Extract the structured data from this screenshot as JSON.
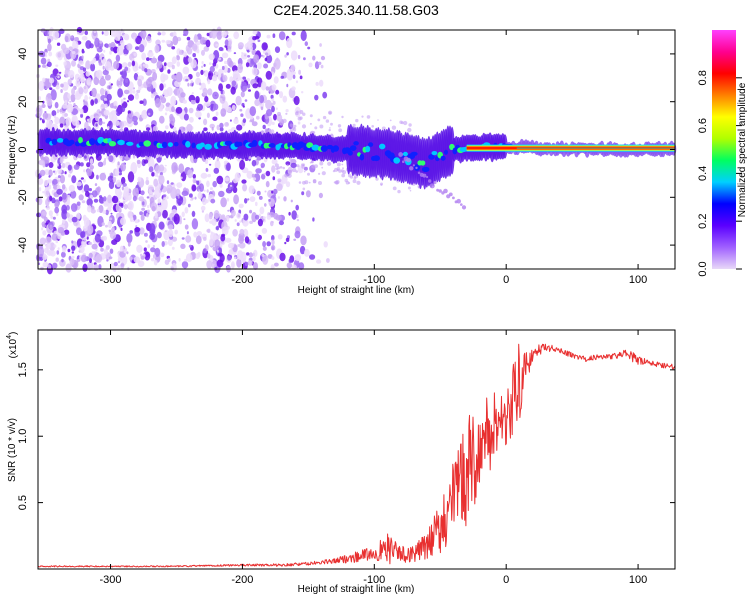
{
  "title": "C2E4.2025.340.11.58.G03",
  "chart_data": [
    {
      "type": "heatmap",
      "name": "spectrogram",
      "xlabel": "Height of straight line (km)",
      "ylabel": "Frequency (Hz)",
      "xlim": [
        -355,
        128
      ],
      "ylim": [
        -50,
        50
      ],
      "xticks": [
        "-300",
        "-200",
        "-100",
        "0",
        "100"
      ],
      "xtick_values": [
        -300,
        -200,
        -100,
        0,
        100
      ],
      "yticks": [
        "40",
        "20",
        "0",
        "-20",
        "-40"
      ],
      "ytick_values": [
        40,
        20,
        0,
        -20,
        -40
      ],
      "colorbar": {
        "label": "Normalized spectral amplitude",
        "range": [
          0,
          1
        ],
        "ticks": [
          "0.0",
          "0.2",
          "0.4",
          "0.6",
          "0.8"
        ],
        "tick_values": [
          0.0,
          0.2,
          0.4,
          0.6,
          0.8
        ],
        "colors": [
          "#e8d8f8",
          "#a060ff",
          "#5a00ff",
          "#0000ff",
          "#00d0ff",
          "#00ff60",
          "#b0ff00",
          "#ffff00",
          "#ff8000",
          "#ff0000",
          "#ff0090",
          "#ff40ff"
        ]
      },
      "ridge": [
        {
          "x": -350,
          "freq": 3
        },
        {
          "x": -300,
          "freq": 3
        },
        {
          "x": -250,
          "freq": 2
        },
        {
          "x": -200,
          "freq": 2
        },
        {
          "x": -150,
          "freq": 1
        },
        {
          "x": -120,
          "freq": 0
        },
        {
          "x": -100,
          "freq": -1
        },
        {
          "x": -80,
          "freq": -3
        },
        {
          "x": -60,
          "freq": -6
        },
        {
          "x": -50,
          "freq": -3
        },
        {
          "x": -40,
          "freq": 0
        },
        {
          "x": -20,
          "freq": 1
        },
        {
          "x": 0,
          "freq": 1
        },
        {
          "x": 50,
          "freq": 0
        },
        {
          "x": 128,
          "freq": 0
        }
      ]
    },
    {
      "type": "line",
      "name": "snr",
      "xlabel": "Height of straight line (km)",
      "ylabel": "SNR (10 * v/v)",
      "yscale_label": "(x10",
      "yscale_exp": "4",
      "xlim": [
        -355,
        128
      ],
      "ylim": [
        0,
        1.8
      ],
      "xticks": [
        "-300",
        "-200",
        "-100",
        "0",
        "100"
      ],
      "xtick_values": [
        -300,
        -200,
        -100,
        0,
        100
      ],
      "yticks": [
        "0.5",
        "1.0",
        "1.5"
      ],
      "ytick_values": [
        0.5,
        1.0,
        1.5
      ],
      "color": "#e83030",
      "series": [
        {
          "name": "SNR",
          "x": [
            -355,
            -300,
            -250,
            -200,
            -170,
            -150,
            -130,
            -115,
            -100,
            -90,
            -80,
            -70,
            -60,
            -50,
            -40,
            -30,
            -20,
            -10,
            0,
            5,
            10,
            15,
            20,
            25,
            30,
            40,
            50,
            60,
            70,
            80,
            90,
            95,
            100,
            110,
            128
          ],
          "y": [
            0.02,
            0.02,
            0.02,
            0.03,
            0.03,
            0.04,
            0.06,
            0.09,
            0.12,
            0.15,
            0.11,
            0.12,
            0.17,
            0.32,
            0.52,
            0.73,
            0.92,
            1.05,
            1.18,
            1.28,
            1.4,
            1.52,
            1.6,
            1.65,
            1.67,
            1.65,
            1.61,
            1.58,
            1.6,
            1.6,
            1.62,
            1.6,
            1.57,
            1.55,
            1.52
          ],
          "spread": [
            0.005,
            0.005,
            0.005,
            0.008,
            0.01,
            0.012,
            0.02,
            0.04,
            0.05,
            0.12,
            0.06,
            0.07,
            0.1,
            0.2,
            0.3,
            0.4,
            0.35,
            0.3,
            0.28,
            0.35,
            0.3,
            0.12,
            0.05,
            0.04,
            0.03,
            0.02,
            0.02,
            0.02,
            0.02,
            0.02,
            0.03,
            0.05,
            0.03,
            0.02,
            0.02
          ]
        }
      ]
    }
  ]
}
